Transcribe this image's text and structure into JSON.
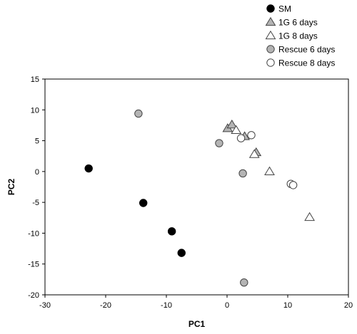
{
  "chart_data": {
    "type": "scatter",
    "xlabel": "PC1",
    "ylabel": "PC2",
    "xlim": [
      -30,
      20
    ],
    "ylim": [
      -20,
      15
    ],
    "x_ticks": [
      -30,
      -20,
      -10,
      0,
      10,
      20
    ],
    "y_ticks": [
      -20,
      -15,
      -10,
      -5,
      0,
      5,
      10,
      15
    ],
    "legend_placement": "top-right, outside plot",
    "grid": false,
    "series": [
      {
        "name": "SM",
        "marker": "circle",
        "fill": "#000000",
        "stroke": "#000000",
        "points": [
          [
            -22.8,
            0.5
          ],
          [
            -13.8,
            -5.1
          ],
          [
            -9.1,
            -9.7
          ],
          [
            -7.5,
            -13.2
          ]
        ]
      },
      {
        "name": "1G 6 days",
        "marker": "triangle",
        "fill": "#b4b4b4",
        "stroke": "#444444",
        "points": [
          [
            0.1,
            7.0
          ],
          [
            0.8,
            7.6
          ],
          [
            2.9,
            5.7
          ],
          [
            4.8,
            3.1
          ]
        ]
      },
      {
        "name": "1G 8 days",
        "marker": "triangle",
        "fill": "#ffffff",
        "stroke": "#444444",
        "points": [
          [
            1.5,
            6.7
          ],
          [
            4.5,
            2.8
          ],
          [
            7.0,
            0.0
          ],
          [
            13.6,
            -7.4
          ]
        ]
      },
      {
        "name": "Rescue 6 days",
        "marker": "circle",
        "fill": "#b4b4b4",
        "stroke": "#444444",
        "points": [
          [
            -14.6,
            9.4
          ],
          [
            -1.3,
            4.6
          ],
          [
            2.6,
            -0.3
          ],
          [
            2.8,
            -18.0
          ]
        ]
      },
      {
        "name": "Rescue 8 days",
        "marker": "circle",
        "fill": "#ffffff",
        "stroke": "#444444",
        "points": [
          [
            2.3,
            5.4
          ],
          [
            4.0,
            5.9
          ],
          [
            10.5,
            -2.0
          ],
          [
            10.9,
            -2.2
          ]
        ]
      }
    ]
  }
}
